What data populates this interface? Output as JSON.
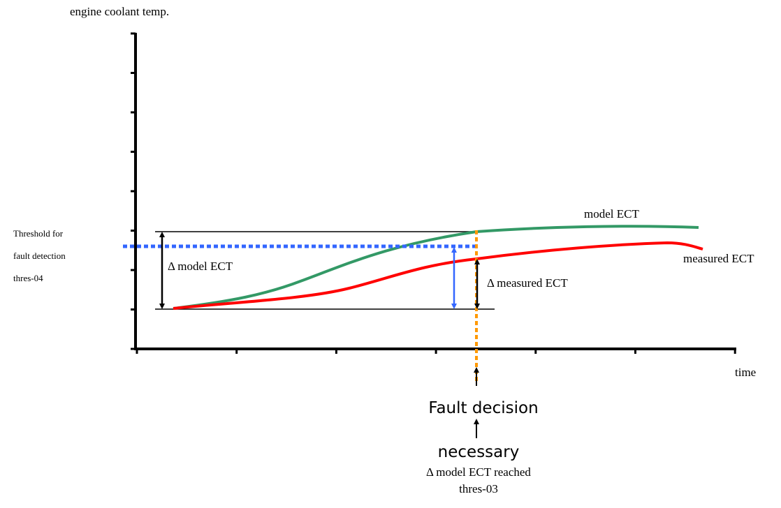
{
  "axes": {
    "y_label": "engine coolant temp.",
    "x_label": "time"
  },
  "threshold_label": {
    "line1": "Threshold for",
    "line2": "fault detection",
    "line3": "thres-04"
  },
  "annotations": {
    "delta_model": "Δ model ECT",
    "delta_measured": "Δ measured ECT",
    "model_curve": "model ECT",
    "measured_curve": "measured ECT",
    "fault_decision": "Fault decision",
    "necessary": "necessary",
    "reached_line1": "Δ model ECT reached",
    "reached_line2": "thres-03"
  },
  "colors": {
    "model": "#339966",
    "measured": "#ff0000",
    "threshold": "#3366ff",
    "decision": "#ff9900"
  }
}
